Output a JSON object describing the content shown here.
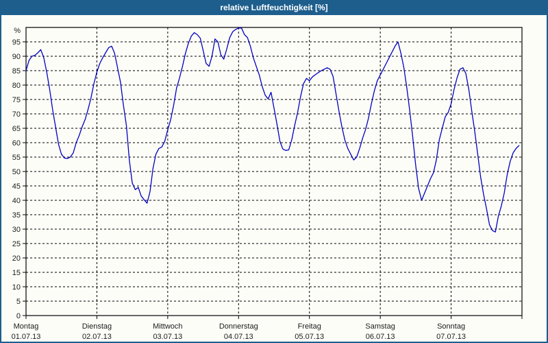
{
  "window": {
    "title": "relative Luftfeuchtigkeit [%]"
  },
  "colors": {
    "title_bar_bg": "#1d5e8d",
    "title_text": "#ffffff",
    "frame_border": "#1d5e8d",
    "background": "#fdfdf8",
    "line": "#0000bf",
    "grid": "#000000",
    "axis": "#000000",
    "label_text": "#1a1a1a"
  },
  "chart_data": {
    "type": "line",
    "title": "relative Luftfeuchtigkeit [%]",
    "ylabel": "%",
    "ylim": [
      0,
      100
    ],
    "y_tick_step": 5,
    "y_ticks": [
      0,
      5,
      10,
      15,
      20,
      25,
      30,
      35,
      40,
      45,
      50,
      55,
      60,
      65,
      70,
      75,
      80,
      85,
      90,
      95
    ],
    "grid": "dashed",
    "legend": "none",
    "sampling": "hourly, 24 points per day, 7 days",
    "days": [
      {
        "name": "Montag",
        "date": "01.07.13"
      },
      {
        "name": "Dienstag",
        "date": "02.07.13"
      },
      {
        "name": "Mittwoch",
        "date": "03.07.13"
      },
      {
        "name": "Donnerstag",
        "date": "04.07.13"
      },
      {
        "name": "Freitag",
        "date": "05.07.13"
      },
      {
        "name": "Samstag",
        "date": "06.07.13"
      },
      {
        "name": "Sonntag",
        "date": "07.07.13"
      }
    ],
    "values": [
      85,
      88.5,
      90,
      90.3,
      91.2,
      92.3,
      89.5,
      84.5,
      78.5,
      71.5,
      65.5,
      59.5,
      56,
      54.7,
      54.5,
      55,
      56.5,
      60,
      62.5,
      65.5,
      68,
      71.5,
      75.5,
      80.5,
      84.5,
      87.5,
      89.5,
      91.3,
      93,
      93.5,
      91,
      86,
      81,
      73,
      66,
      54,
      46,
      43.7,
      44.5,
      41.5,
      40.2,
      39,
      43,
      51,
      56,
      58,
      58.5,
      60.5,
      64.5,
      68,
      73,
      79,
      82.5,
      86.5,
      91,
      94.5,
      97,
      98.2,
      97.5,
      96.3,
      92,
      87.5,
      86.5,
      90,
      96,
      95,
      90.5,
      89,
      92.5,
      96.5,
      98.5,
      99.3,
      99.8,
      99.8,
      97.5,
      96.5,
      93.5,
      89.5,
      86.5,
      83.5,
      79.5,
      76.5,
      75.2,
      77.5,
      72,
      66.5,
      60.5,
      57.8,
      57.3,
      57.5,
      61,
      66,
      70.5,
      76,
      80.5,
      82.3,
      81.5,
      82.8,
      83.6,
      84.3,
      85,
      85.5,
      86,
      85.5,
      83,
      77,
      71,
      65.5,
      61,
      58,
      56,
      54,
      55,
      58,
      61.5,
      64.5,
      68.5,
      73.5,
      78,
      81.5,
      83.5,
      85.5,
      87.5,
      89.5,
      91.5,
      93.5,
      95,
      91,
      86,
      79,
      71,
      62,
      52,
      44,
      40,
      42.5,
      45,
      47.5,
      49.5,
      54,
      61,
      65,
      69,
      70.5,
      73.5,
      78.5,
      82.5,
      85.5,
      86,
      84,
      78.5,
      71,
      64,
      56,
      48,
      42,
      37,
      31.5,
      29.5,
      29,
      34.5,
      38,
      42.5,
      49,
      53.5,
      56.5,
      58,
      59
    ]
  }
}
